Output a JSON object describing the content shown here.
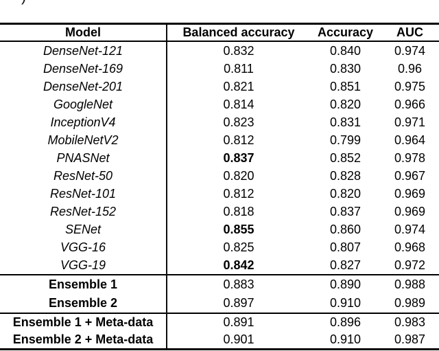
{
  "page": {
    "background_color": "#ffffff",
    "text_color": "#000000",
    "rule_color": "#000000",
    "cropped_text_fragment": ")"
  },
  "table": {
    "header": {
      "model": "Model",
      "balanced_accuracy": "Balanced accuracy",
      "accuracy": "Accuracy",
      "auc": "AUC"
    },
    "models": [
      {
        "name": "DenseNet-121",
        "balanced_accuracy": "0.832",
        "accuracy": "0.840",
        "auc": "0.974"
      },
      {
        "name": "DenseNet-169",
        "balanced_accuracy": "0.811",
        "accuracy": "0.830",
        "auc": "0.96"
      },
      {
        "name": "DenseNet-201",
        "balanced_accuracy": "0.821",
        "accuracy": "0.851",
        "auc": "0.975"
      },
      {
        "name": "GoogleNet",
        "balanced_accuracy": "0.814",
        "accuracy": "0.820",
        "auc": "0.966"
      },
      {
        "name": "InceptionV4",
        "balanced_accuracy": "0.823",
        "accuracy": "0.831",
        "auc": "0.971"
      },
      {
        "name": "MobileNetV2",
        "balanced_accuracy": "0.812",
        "accuracy": "0.799",
        "auc": "0.964"
      },
      {
        "name": "PNASNet",
        "balanced_accuracy": "0.837",
        "accuracy": "0.852",
        "auc": "0.978"
      },
      {
        "name": "ResNet-50",
        "balanced_accuracy": "0.820",
        "accuracy": "0.828",
        "auc": "0.967"
      },
      {
        "name": "ResNet-101",
        "balanced_accuracy": "0.812",
        "accuracy": "0.820",
        "auc": "0.969"
      },
      {
        "name": "ResNet-152",
        "balanced_accuracy": "0.818",
        "accuracy": "0.837",
        "auc": "0.969"
      },
      {
        "name": "SENet",
        "balanced_accuracy": "0.855",
        "accuracy": "0.860",
        "auc": "0.974"
      },
      {
        "name": "VGG-16",
        "balanced_accuracy": "0.825",
        "accuracy": "0.807",
        "auc": "0.968"
      },
      {
        "name": "VGG-19",
        "balanced_accuracy": "0.842",
        "accuracy": "0.827",
        "auc": "0.972"
      }
    ],
    "ensembles": [
      {
        "name": "Ensemble 1",
        "balanced_accuracy": "0.883",
        "accuracy": "0.890",
        "auc": "0.988"
      },
      {
        "name": "Ensemble 2",
        "balanced_accuracy": "0.897",
        "accuracy": "0.910",
        "auc": "0.989"
      }
    ],
    "ensembles_meta": [
      {
        "name": "Ensemble 1 + Meta-data",
        "balanced_accuracy": "0.891",
        "accuracy": "0.896",
        "auc": "0.983"
      },
      {
        "name": "Ensemble 2 + Meta-data",
        "balanced_accuracy": "0.901",
        "accuracy": "0.910",
        "auc": "0.987"
      }
    ]
  }
}
